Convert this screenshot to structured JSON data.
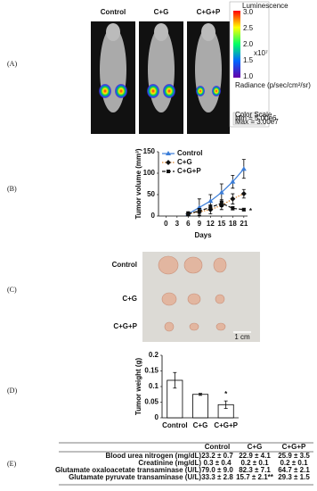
{
  "panel_labels": [
    "(A)",
    "(B)",
    "(C)",
    "(D)",
    "(E)"
  ],
  "imaging": {
    "groups": [
      "Control",
      "C+G",
      "C+G+P"
    ],
    "colorbar_title": "Luminescence",
    "colorbar_ticks": [
      "3.0",
      "2.5",
      "2.0",
      "1.5",
      "1.0"
    ],
    "colorbar_unit": "x10⁷",
    "radiance": "Radiance (p/sec/cm²/sr)",
    "scale_lines": [
      "Color Scale",
      "Min = 5.00e6",
      "Max = 3.00e7"
    ]
  },
  "chart_data": [
    {
      "type": "line",
      "ylabel": "Tumor volume (mm³)",
      "xlabel": "Days",
      "x": [
        6,
        9,
        12,
        15,
        18,
        21
      ],
      "xlim": [
        -2,
        22
      ],
      "xticks": [
        0,
        3,
        6,
        9,
        12,
        15,
        18,
        21
      ],
      "ylim": [
        0,
        150
      ],
      "yticks": [
        0,
        50,
        100,
        150
      ],
      "series": [
        {
          "name": "Control",
          "color": "#3b7dd8",
          "line_style": "solid",
          "marker": "triangle",
          "values": [
            5,
            20,
            35,
            55,
            80,
            110
          ],
          "errors": [
            5,
            20,
            15,
            20,
            15,
            22
          ]
        },
        {
          "name": "C+G",
          "color": "#d9822b",
          "line_style": "dotted",
          "marker": "diamond",
          "values": [
            5,
            10,
            15,
            25,
            40,
            52
          ],
          "errors": [
            4,
            8,
            10,
            10,
            12,
            10
          ]
        },
        {
          "name": "C+G+P",
          "color": "#111111",
          "line_style": "dashed",
          "marker": "square",
          "values": [
            5,
            12,
            20,
            30,
            18,
            15
          ],
          "errors": [
            4,
            6,
            6,
            8,
            4,
            3
          ]
        }
      ],
      "annotation": "*",
      "legend": "upper-left"
    },
    {
      "type": "bar",
      "ylabel": "Tumor weight (g)",
      "categories": [
        "Control",
        "C+G",
        "C+G+P"
      ],
      "values": [
        0.12,
        0.075,
        0.042
      ],
      "errors": [
        0.025,
        0.003,
        0.012
      ],
      "color": "#ffffff",
      "ylim": [
        0,
        0.2
      ],
      "yticks": [
        0,
        0.05,
        0.1,
        0.15,
        0.2
      ],
      "annotation": "*"
    }
  ],
  "photo": {
    "groups": [
      "Control",
      "C+G",
      "C+G+P"
    ],
    "scale_bar": "1 cm"
  },
  "table": {
    "header": [
      "Control",
      "C+G",
      "C+G+P"
    ],
    "rows": [
      [
        "Blood urea nitrogen (mg/dL)",
        "23.2 ± 0.7",
        "22.9 ± 4.1",
        "25.9 ± 3.5"
      ],
      [
        "Creatinine (mg/dL)",
        "0.3 ± 0.4",
        "0.2 ± 0.1",
        "0.2 ± 0.1"
      ],
      [
        "Glutamate oxaloacetate transaminase (U/L)",
        "79.0 ± 9.0",
        "82.3 ± 7.1",
        "64.7 ± 2.1"
      ],
      [
        "Glutamate pyruvate transaminase (U/L)",
        "33.3 ± 2.8",
        "15.7 ± 2.1**",
        "29.3 ± 1.5"
      ]
    ]
  }
}
